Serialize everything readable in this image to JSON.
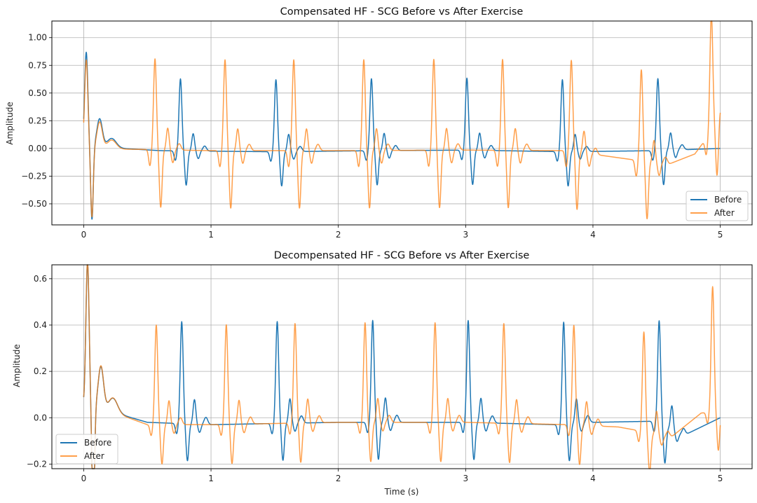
{
  "chart_data": [
    {
      "type": "line",
      "title": "Compensated HF - SCG Before vs After Exercise",
      "xlabel": "",
      "ylabel": "Amplitude",
      "xlim": [
        -0.25,
        5.25
      ],
      "ylim": [
        -0.69,
        1.15
      ],
      "xticks": [
        0,
        1,
        2,
        3,
        4,
        5
      ],
      "xtick_labels": [
        "0",
        "1",
        "2",
        "3",
        "4",
        "5"
      ],
      "yticks": [
        -0.5,
        -0.25,
        0,
        0.25,
        0.5,
        0.75,
        1.0
      ],
      "ytick_labels": [
        "−0.50",
        "−0.25",
        "0.00",
        "0.25",
        "0.50",
        "0.75",
        "1.00"
      ],
      "grid": true,
      "legend": "bottom-right",
      "series": [
        {
          "name": "Before",
          "color": "#1f77b4",
          "model": {
            "beat_times": [
              0.02,
              0.76,
              1.51,
              2.26,
              3.01,
              3.76,
              4.51
            ],
            "first_peak": 0.85,
            "beat_peak": 0.65,
            "beat_trough": -0.31,
            "baseline": [
              [
                0,
                0.02
              ],
              [
                0.3,
                0.0
              ],
              [
                0.6,
                -0.02
              ],
              [
                1.5,
                -0.03
              ],
              [
                2.3,
                -0.02
              ],
              [
                3.0,
                -0.015
              ],
              [
                3.8,
                -0.03
              ],
              [
                4.5,
                -0.02
              ],
              [
                5.0,
                0.0
              ]
            ]
          }
        },
        {
          "name": "After",
          "color": "#ff7f0e",
          "model": {
            "beat_times": [
              0.02,
              0.56,
              1.11,
              1.65,
              2.2,
              2.75,
              3.29,
              3.83,
              4.38,
              4.93
            ],
            "first_peak": 0.8,
            "beat_peak": 0.82,
            "beat_trough": -0.52,
            "last_peak": 1.06,
            "baseline": [
              [
                0,
                0.0
              ],
              [
                0.5,
                -0.01
              ],
              [
                1.0,
                -0.02
              ],
              [
                2.0,
                -0.02
              ],
              [
                3.0,
                -0.015
              ],
              [
                3.8,
                -0.02
              ],
              [
                4.3,
                -0.1
              ],
              [
                4.6,
                -0.14
              ],
              [
                4.8,
                -0.05
              ],
              [
                4.93,
                0.15
              ],
              [
                5.0,
                0.35
              ]
            ]
          }
        }
      ]
    },
    {
      "type": "line",
      "title": "Decompensated HF - SCG Before vs After Exercise",
      "xlabel": "Time (s)",
      "ylabel": "Amplitude",
      "xlim": [
        -0.25,
        5.25
      ],
      "ylim": [
        -0.22,
        0.66
      ],
      "xticks": [
        0,
        1,
        2,
        3,
        4,
        5
      ],
      "xtick_labels": [
        "0",
        "1",
        "2",
        "3",
        "4",
        "5"
      ],
      "yticks": [
        -0.2,
        0,
        0.2,
        0.4,
        0.6
      ],
      "ytick_labels": [
        "−0.2",
        "0.0",
        "0.2",
        "0.4",
        "0.6"
      ],
      "grid": true,
      "legend": "bottom-left",
      "series": [
        {
          "name": "Before",
          "color": "#1f77b4",
          "model": {
            "beat_times": [
              0.03,
              0.77,
              1.52,
              2.27,
              3.02,
              3.77,
              4.52
            ],
            "first_peak": 0.62,
            "beat_peak": 0.44,
            "beat_trough": -0.16,
            "baseline": [
              [
                0,
                0.05
              ],
              [
                0.25,
                0.02
              ],
              [
                0.5,
                -0.02
              ],
              [
                1.0,
                -0.03
              ],
              [
                2.0,
                -0.02
              ],
              [
                3.0,
                -0.02
              ],
              [
                3.7,
                -0.03
              ],
              [
                4.0,
                -0.02
              ],
              [
                4.5,
                -0.015
              ],
              [
                4.7,
                -0.08
              ],
              [
                5.0,
                0.0
              ]
            ]
          }
        },
        {
          "name": "After",
          "color": "#ff7f0e",
          "model": {
            "beat_times": [
              0.03,
              0.57,
              1.12,
              1.66,
              2.21,
              2.76,
              3.3,
              3.85,
              4.4,
              4.94
            ],
            "first_peak": 0.63,
            "beat_peak": 0.43,
            "beat_trough": -0.17,
            "last_peak": 0.54,
            "baseline": [
              [
                0,
                0.05
              ],
              [
                0.25,
                0.02
              ],
              [
                0.5,
                -0.03
              ],
              [
                1.0,
                -0.03
              ],
              [
                2.0,
                -0.02
              ],
              [
                3.0,
                -0.02
              ],
              [
                3.8,
                -0.03
              ],
              [
                4.2,
                -0.04
              ],
              [
                4.4,
                -0.06
              ],
              [
                4.6,
                -0.09
              ],
              [
                4.85,
                0.02
              ],
              [
                5.0,
                0.03
              ]
            ]
          }
        }
      ]
    }
  ]
}
